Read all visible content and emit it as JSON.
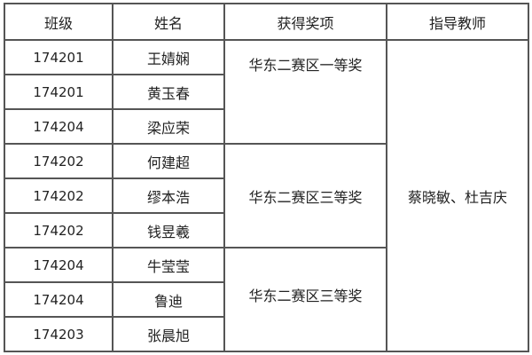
{
  "headers": [
    "班级",
    "姓名",
    "获得奖项",
    "指导教师"
  ],
  "rows": [
    {
      "class": "174201",
      "name": "王婧娴"
    },
    {
      "class": "174201",
      "name": "黄玉春"
    },
    {
      "class": "174204",
      "name": "梁应荣"
    },
    {
      "class": "174202",
      "name": "何建超"
    },
    {
      "class": "174202",
      "name": "缪本浩"
    },
    {
      "class": "174202",
      "name": "钱昱羲"
    },
    {
      "class": "174204",
      "name": "牛莹莹"
    },
    {
      "class": "174204",
      "name": "鲁迪"
    },
    {
      "class": "174203",
      "name": "张晨旭"
    }
  ],
  "awards": [
    "华东二赛区一等奖",
    "华东二赛区三等奖",
    "华东二赛区三等奖"
  ],
  "teachers": "蔡晓敏、杜吉庆"
}
